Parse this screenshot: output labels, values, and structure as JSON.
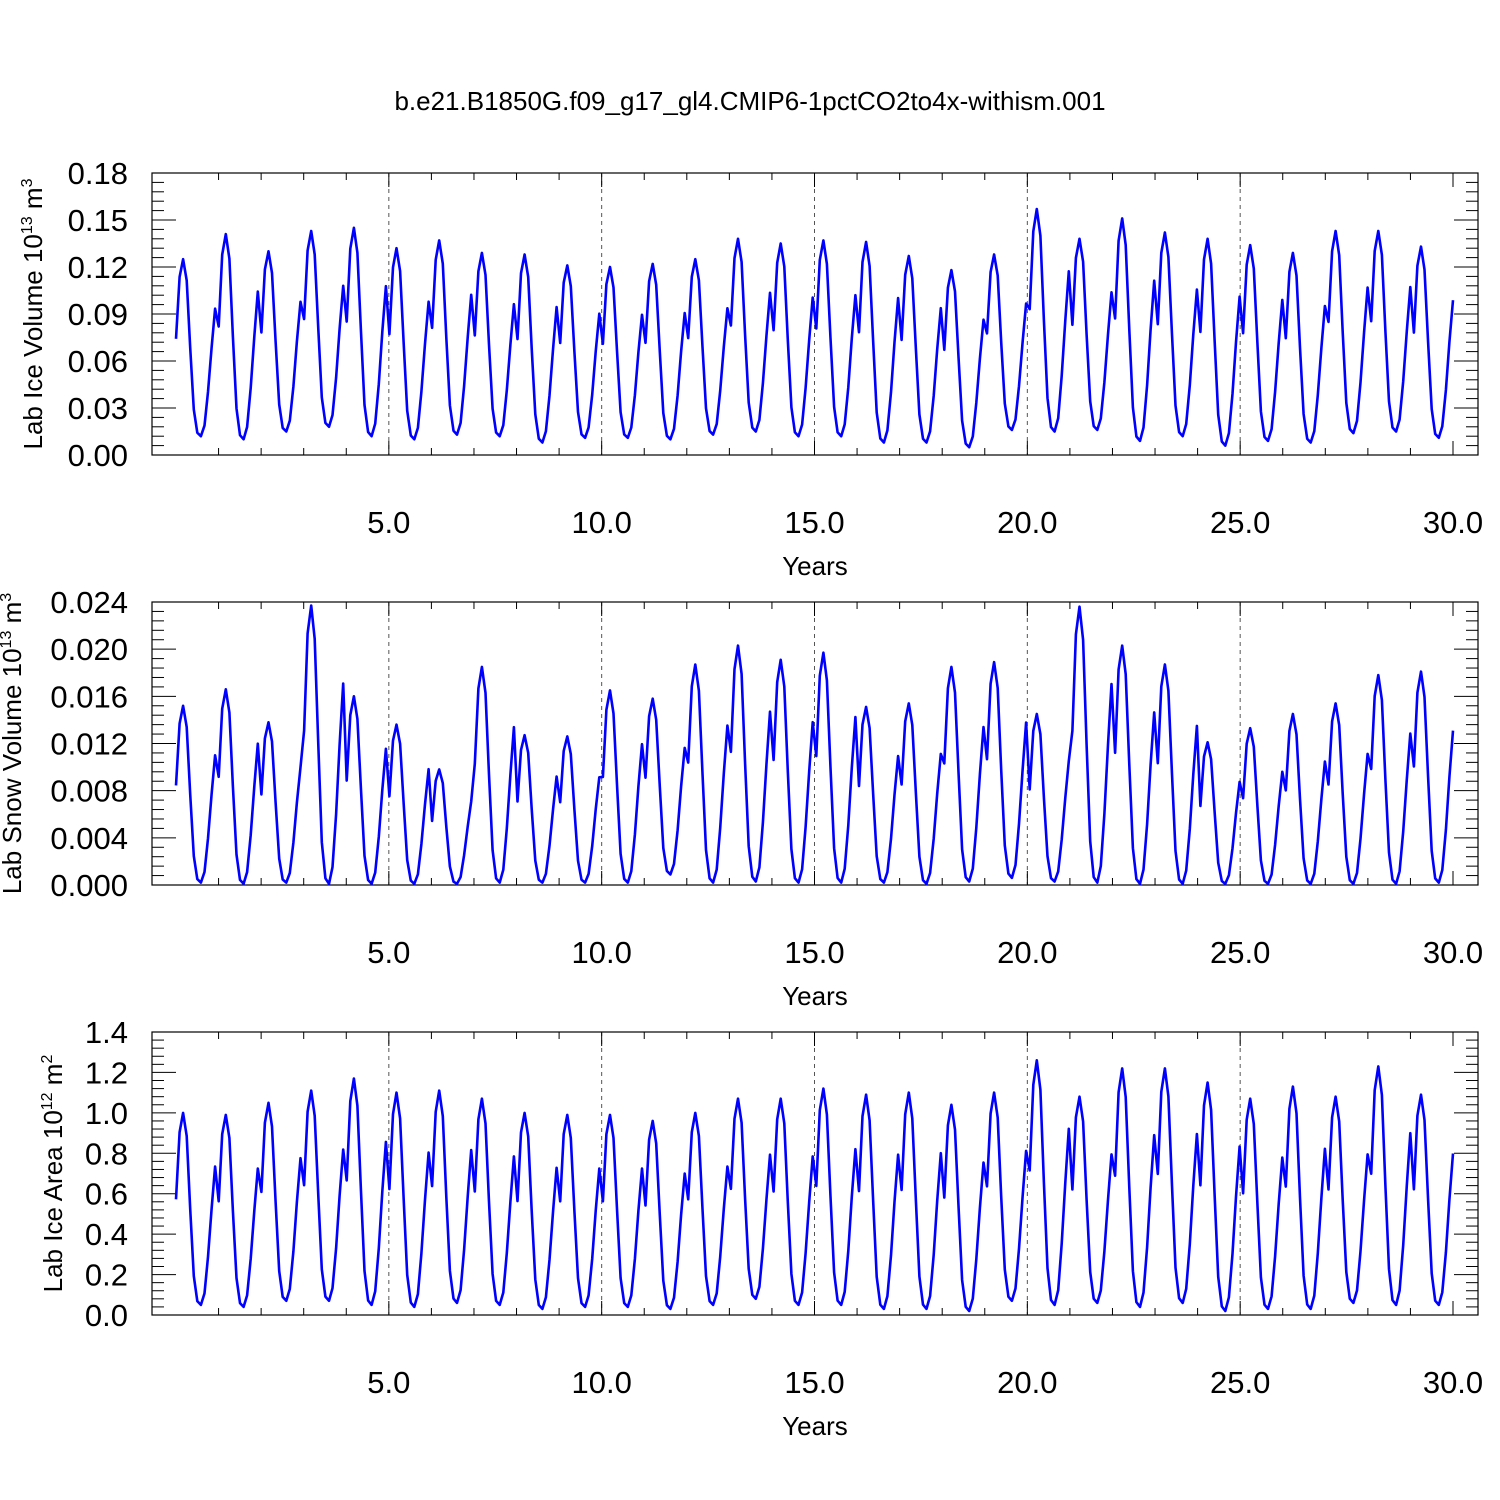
{
  "title": "b.e21.B1850G.f09_g17_gl4.CMIP6-1pctCO2to4x-withism.001",
  "colors": {
    "series": "#0000ff",
    "axis": "#000000",
    "refline": "#555555",
    "background": "#ffffff"
  },
  "chart_data": [
    {
      "type": "line",
      "title": "",
      "xlabel": "Years",
      "ylabel_parts": {
        "text": "Lab Ice Volume 10",
        "exp": "13",
        "unit": " m",
        "unit_exp": "3"
      },
      "xlim": [
        0,
        30
      ],
      "ylim": [
        0,
        0.18
      ],
      "xticks": [
        5,
        10,
        15,
        20,
        25,
        30
      ],
      "xtick_labels": [
        "5.0",
        "10.0",
        "15.0",
        "20.0",
        "25.0",
        "30.0"
      ],
      "yticks": [
        0,
        0.03,
        0.06,
        0.09,
        0.12,
        0.15,
        0.18
      ],
      "ytick_labels": [
        "0.00",
        "0.03",
        "0.06",
        "0.09",
        "0.12",
        "0.15",
        "0.18"
      ],
      "ref_lines_x": [
        5,
        10,
        15,
        20,
        25
      ],
      "series": [
        {
          "values": []
        }
      ],
      "yearly_peaks": [
        0.125,
        0.141,
        0.13,
        0.143,
        0.145,
        0.132,
        0.137,
        0.129,
        0.128,
        0.121,
        0.12,
        0.122,
        0.125,
        0.138,
        0.135,
        0.137,
        0.136,
        0.127,
        0.118,
        0.128,
        0.157,
        0.138,
        0.151,
        0.142,
        0.138,
        0.134,
        0.129,
        0.143,
        0.143,
        0.133
      ],
      "yearly_mins": [
        0.012,
        0.01,
        0.015,
        0.018,
        0.012,
        0.01,
        0.013,
        0.012,
        0.008,
        0.011,
        0.011,
        0.01,
        0.013,
        0.015,
        0.012,
        0.012,
        0.008,
        0.008,
        0.005,
        0.016,
        0.015,
        0.016,
        0.009,
        0.012,
        0.006,
        0.009,
        0.008,
        0.014,
        0.015,
        0.011
      ]
    },
    {
      "type": "line",
      "title": "",
      "xlabel": "Years",
      "ylabel_parts": {
        "text": "Lab Snow Volume 10",
        "exp": "13",
        "unit": " m",
        "unit_exp": "3"
      },
      "xlim": [
        0,
        30
      ],
      "ylim": [
        0,
        0.024
      ],
      "xticks": [
        5,
        10,
        15,
        20,
        25,
        30
      ],
      "xtick_labels": [
        "5.0",
        "10.0",
        "15.0",
        "20.0",
        "25.0",
        "30.0"
      ],
      "yticks": [
        0,
        0.004,
        0.008,
        0.012,
        0.016,
        0.02,
        0.024
      ],
      "ytick_labels": [
        "0.000",
        "0.004",
        "0.008",
        "0.012",
        "0.016",
        "0.020",
        "0.024"
      ],
      "ref_lines_x": [
        5,
        10,
        15,
        20,
        25
      ],
      "series": [
        {
          "values": []
        }
      ],
      "yearly_peaks": [
        0.0152,
        0.0166,
        0.0138,
        0.0237,
        0.016,
        0.0136,
        0.0098,
        0.0185,
        0.0127,
        0.0126,
        0.0165,
        0.0158,
        0.0187,
        0.0203,
        0.0191,
        0.0197,
        0.0151,
        0.0154,
        0.0185,
        0.0189,
        0.0145,
        0.0236,
        0.0203,
        0.0187,
        0.0121,
        0.0133,
        0.0145,
        0.0154,
        0.0178,
        0.0181
      ],
      "yearly_mins": [
        0.0002,
        0.0001,
        0.0002,
        0.0001,
        0.0001,
        0.0001,
        0.0001,
        0.0002,
        0.0002,
        0.0002,
        0.0002,
        0.0009,
        0.0002,
        0.0003,
        0.0002,
        0.0002,
        0.0002,
        0.0001,
        0.0003,
        0.0006,
        0.0003,
        0.0002,
        0.0001,
        0.0001,
        0.0001,
        0.0001,
        0.0001,
        0.0001,
        0.0001,
        0.0002
      ]
    },
    {
      "type": "line",
      "title": "",
      "xlabel": "Years",
      "ylabel_parts": {
        "text": "Lab Ice Area 10",
        "exp": "12",
        "unit": " m",
        "unit_exp": "2"
      },
      "xlim": [
        0,
        30
      ],
      "ylim": [
        0,
        1.4
      ],
      "xticks": [
        5,
        10,
        15,
        20,
        25,
        30
      ],
      "xtick_labels": [
        "5.0",
        "10.0",
        "15.0",
        "20.0",
        "25.0",
        "30.0"
      ],
      "yticks": [
        0,
        0.2,
        0.4,
        0.6,
        0.8,
        1.0,
        1.2,
        1.4
      ],
      "ytick_labels": [
        "0.0",
        "0.2",
        "0.4",
        "0.6",
        "0.8",
        "1.0",
        "1.2",
        "1.4"
      ],
      "ref_lines_x": [
        5,
        10,
        15,
        20,
        25
      ],
      "series": [
        {
          "values": []
        }
      ],
      "yearly_peaks": [
        1.0,
        0.99,
        1.05,
        1.11,
        1.17,
        1.1,
        1.11,
        1.07,
        1.0,
        0.99,
        0.99,
        0.96,
        1.0,
        1.07,
        1.07,
        1.12,
        1.09,
        1.1,
        1.04,
        1.1,
        1.26,
        1.08,
        1.22,
        1.22,
        1.15,
        1.07,
        1.13,
        1.08,
        1.23,
        1.09
      ],
      "yearly_mins": [
        0.05,
        0.04,
        0.07,
        0.07,
        0.05,
        0.04,
        0.06,
        0.05,
        0.03,
        0.04,
        0.04,
        0.03,
        0.05,
        0.08,
        0.05,
        0.05,
        0.03,
        0.03,
        0.02,
        0.07,
        0.05,
        0.06,
        0.04,
        0.06,
        0.02,
        0.03,
        0.03,
        0.06,
        0.05,
        0.05
      ]
    }
  ]
}
